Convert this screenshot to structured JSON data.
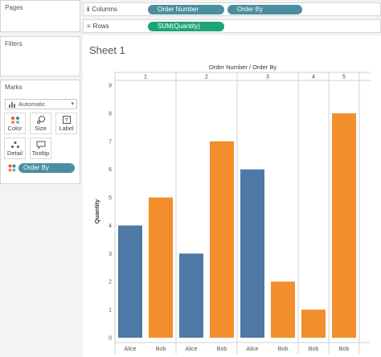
{
  "shelves": {
    "pages_label": "Pages",
    "filters_label": "Filters",
    "marks_label": "Marks",
    "columns_label": "Columns",
    "rows_label": "Rows",
    "columns_pills": [
      "Order Number",
      "Order By"
    ],
    "rows_pills": [
      "SUM(Quantity)"
    ]
  },
  "marks": {
    "mark_type": "Automatic",
    "buttons": [
      "Color",
      "Size",
      "Label",
      "Detail",
      "Tooltip"
    ],
    "color_field": "Order By"
  },
  "sheet": {
    "title": "Sheet 1"
  },
  "colors": {
    "alice": "#4e79a7",
    "bob": "#f28e2b",
    "pill_blue": "#4b8ea0",
    "pill_green": "#1fa37b"
  },
  "chart_data": {
    "type": "bar",
    "title": "Order Number / Order By",
    "ylabel": "Quantity",
    "ylim": [
      0,
      9
    ],
    "yticks": [
      0,
      1,
      2,
      3,
      4,
      5,
      6,
      7,
      8,
      9
    ],
    "groups": [
      {
        "label": "1",
        "bars": [
          {
            "category": "Alice",
            "value": 4
          },
          {
            "category": "Bob",
            "value": 5
          }
        ]
      },
      {
        "label": "2",
        "bars": [
          {
            "category": "Alice",
            "value": 3
          },
          {
            "category": "Bob",
            "value": 7
          }
        ]
      },
      {
        "label": "3",
        "bars": [
          {
            "category": "Alice",
            "value": 6
          },
          {
            "category": "Bob",
            "value": 2
          }
        ]
      },
      {
        "label": "4",
        "bars": [
          {
            "category": "Bob",
            "value": 1
          }
        ]
      },
      {
        "label": "5",
        "bars": [
          {
            "category": "Bob",
            "value": 8
          }
        ]
      }
    ]
  }
}
